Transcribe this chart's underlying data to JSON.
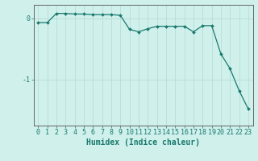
{
  "x": [
    0,
    1,
    2,
    3,
    4,
    5,
    6,
    7,
    8,
    9,
    10,
    11,
    12,
    13,
    14,
    15,
    16,
    17,
    18,
    19,
    20,
    21,
    22,
    23
  ],
  "y": [
    -0.07,
    -0.07,
    0.08,
    0.08,
    0.07,
    0.07,
    0.06,
    0.06,
    0.06,
    0.05,
    -0.18,
    -0.22,
    -0.17,
    -0.13,
    -0.13,
    -0.13,
    -0.13,
    -0.22,
    -0.12,
    -0.12,
    -0.58,
    -0.82,
    -1.18,
    -1.48
  ],
  "line_color": "#1a7a6e",
  "marker": "D",
  "marker_size": 2.0,
  "line_width": 0.9,
  "xlabel": "Humidex (Indice chaleur)",
  "xlabel_fontsize": 7,
  "bg_color": "#cff0eb",
  "grid_color": "#b8ddd8",
  "axis_color": "#666666",
  "tick_color": "#1a7a6e",
  "yticks": [
    0,
    -1
  ],
  "ylim": [
    -1.75,
    0.22
  ],
  "xlim": [
    -0.5,
    23.5
  ],
  "tick_fontsize": 6,
  "figsize": [
    3.2,
    2.0
  ],
  "dpi": 100
}
